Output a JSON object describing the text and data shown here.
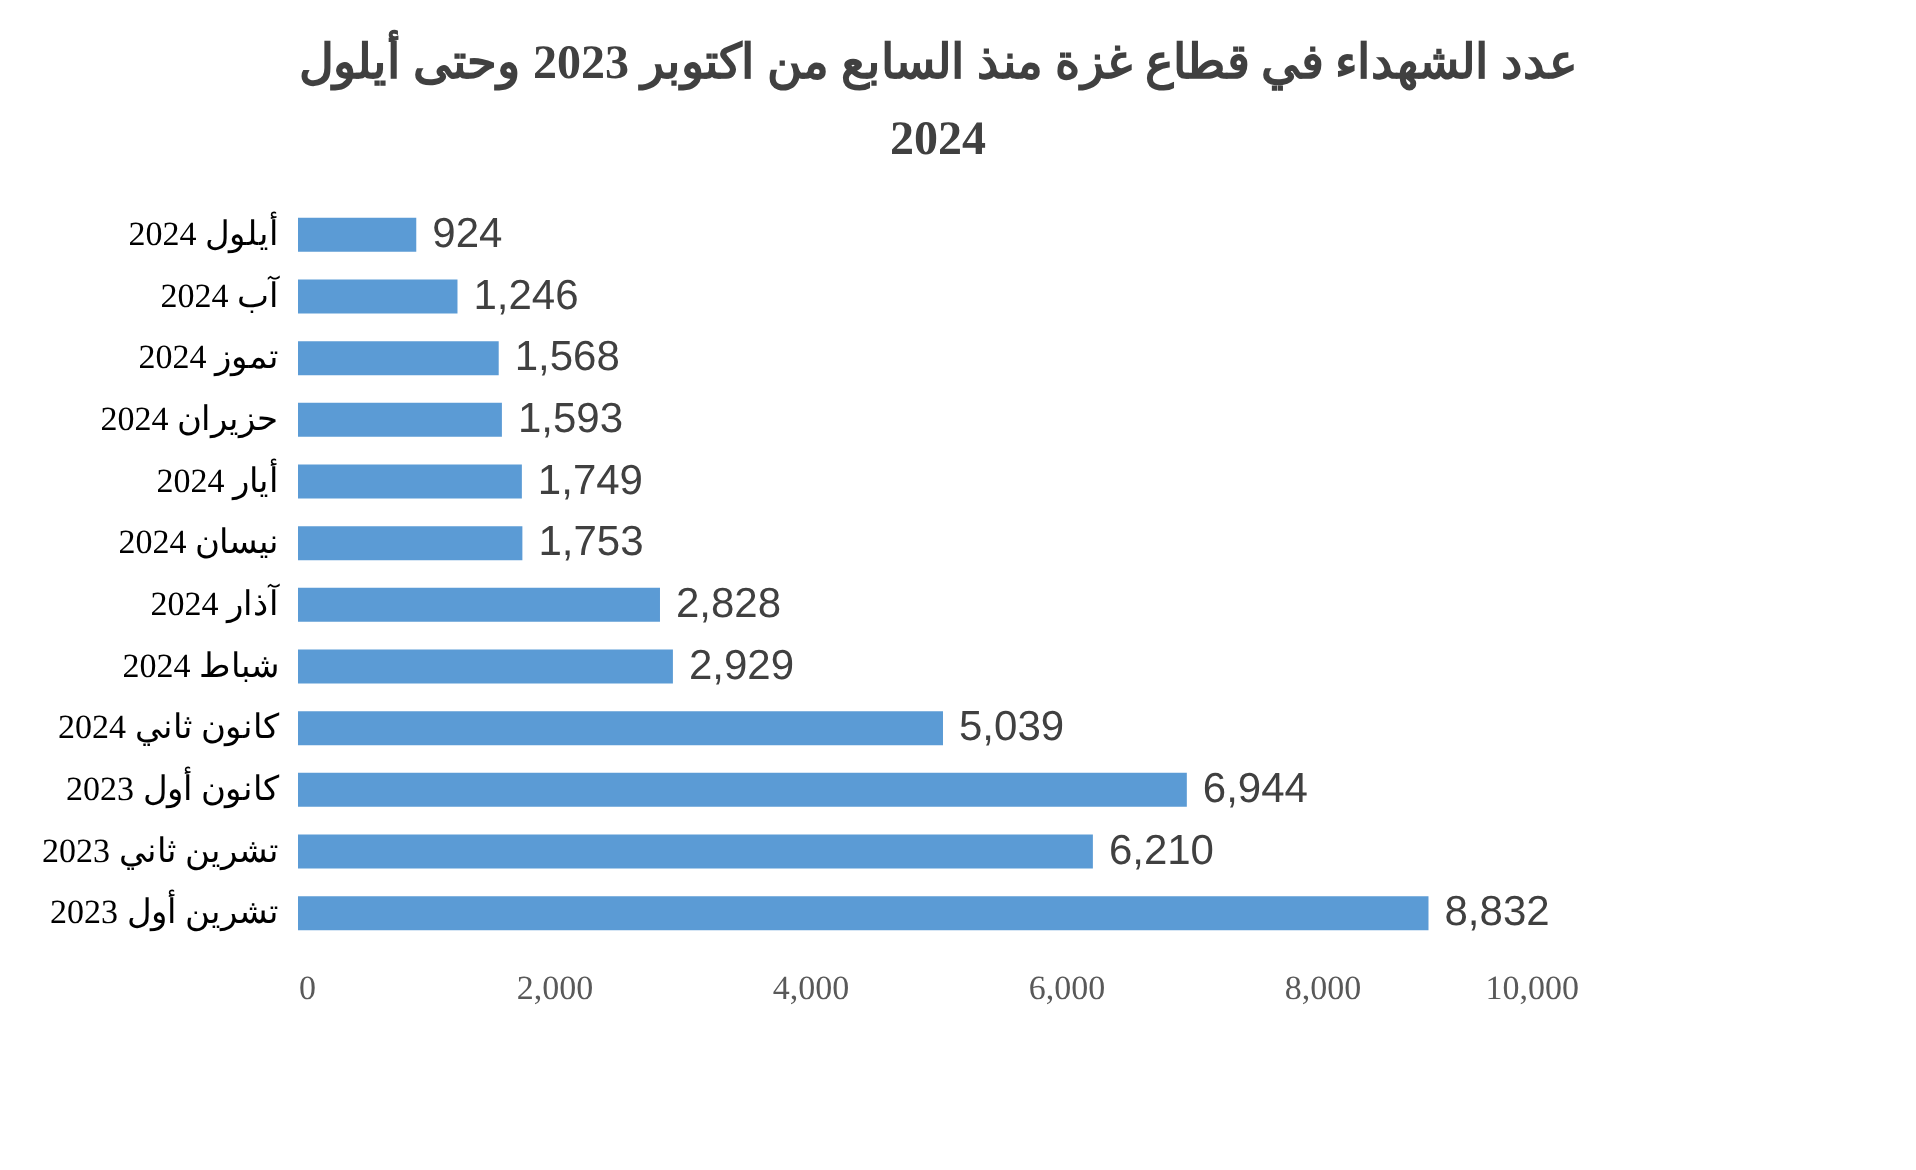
{
  "chart_data": {
    "type": "bar",
    "orientation": "horizontal",
    "title": "عدد الشهداء في قطاع غزة منذ السابع من اكتوبر 2023 وحتى  أيلول 2024",
    "categories": [
      "أيلول 2024",
      "آب 2024",
      "تموز 2024",
      "حزيران 2024",
      "أيار 2024",
      "نيسان 2024",
      "آذار 2024",
      "شباط 2024",
      "كانون ثاني 2024",
      "كانون أول 2023",
      "تشرين ثاني 2023",
      "تشرين أول 2023"
    ],
    "values": [
      924,
      1246,
      1568,
      1593,
      1749,
      1753,
      2828,
      2929,
      5039,
      6944,
      6210,
      8832
    ],
    "value_labels": [
      "924",
      "1,246",
      "1,568",
      "1,593",
      "1,749",
      "1,753",
      "2,828",
      "2,929",
      "5,039",
      "6,944",
      "6,210",
      "8,832"
    ],
    "color": "#5b9bd5",
    "xlim": [
      0,
      10000
    ],
    "xticks": [
      0,
      {
        "value": 2000,
        "label": "2,000"
      },
      {
        "value": 4000,
        "label": "4,000"
      },
      {
        "value": 6000,
        "label": "6,000"
      },
      {
        "value": 8000,
        "label": "8,000"
      },
      {
        "value": 10000,
        "label": "10,000"
      }
    ],
    "grid": false
  }
}
